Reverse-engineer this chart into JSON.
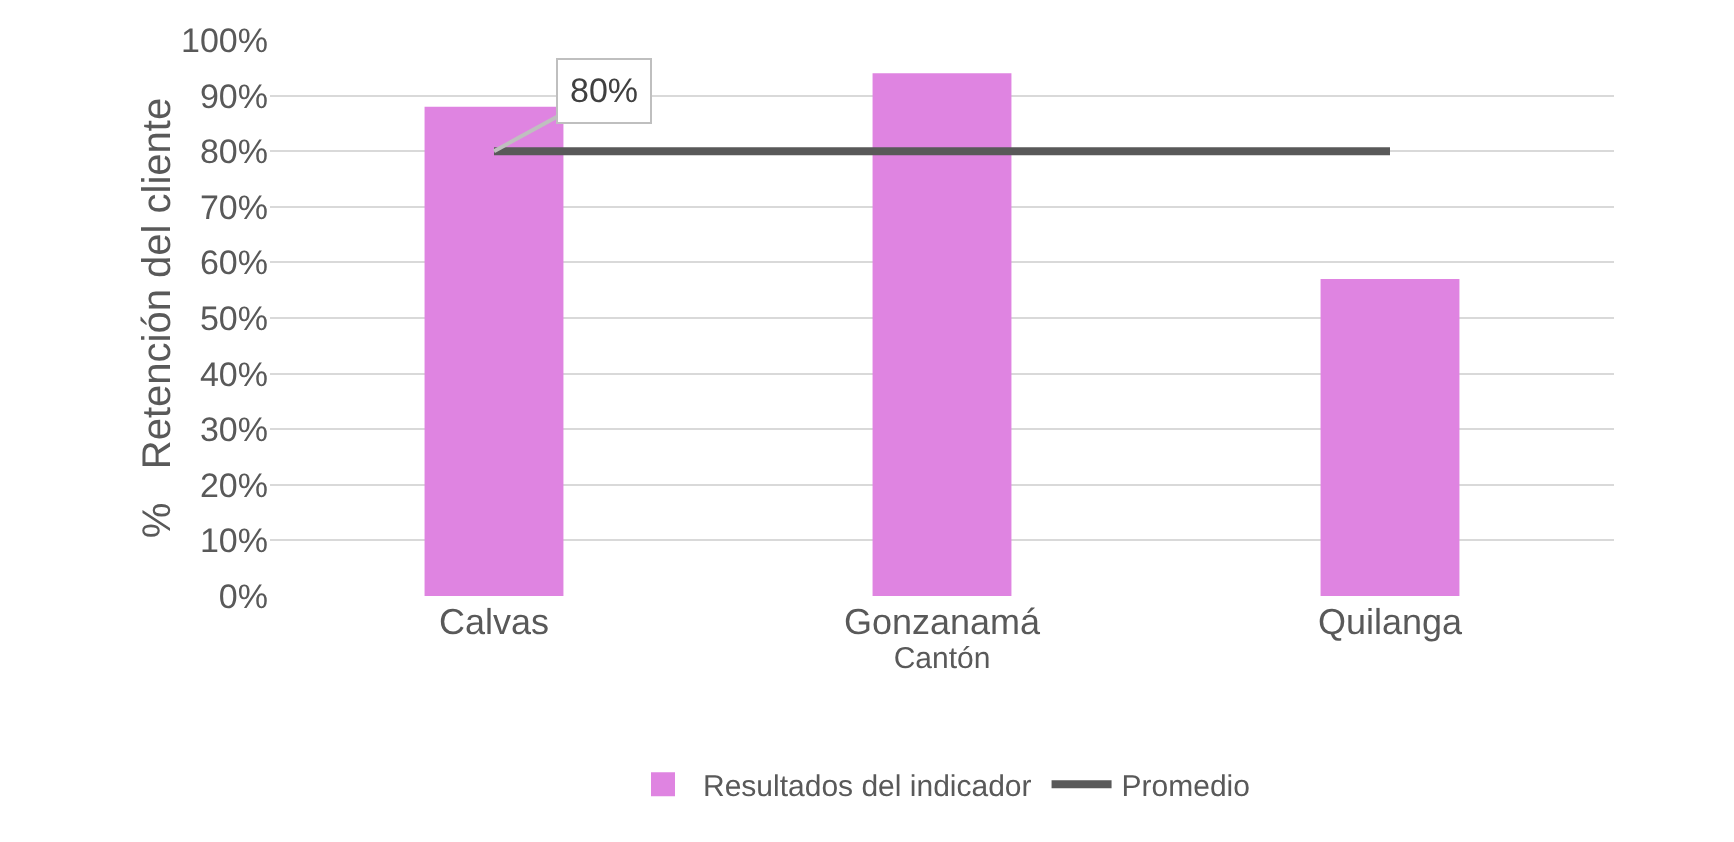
{
  "chart_data": {
    "type": "bar",
    "xlabel": "Cantón",
    "ylabel": "%   Retención del cliente",
    "categories": [
      "Calvas",
      "Gonzanamá",
      "Quilanga"
    ],
    "series": [
      {
        "name": "Resultados del indicador",
        "color": "#df84e1",
        "values": [
          88,
          94,
          57
        ]
      },
      {
        "name": "Promedio",
        "type": "line",
        "color": "#595959",
        "values": [
          80,
          80,
          80
        ]
      }
    ],
    "ylim": [
      0,
      100
    ],
    "yticks": [
      {
        "value": 0,
        "label": "0%"
      },
      {
        "value": 10,
        "label": "10%"
      },
      {
        "value": 20,
        "label": "20%"
      },
      {
        "value": 30,
        "label": "30%"
      },
      {
        "value": 40,
        "label": "40%"
      },
      {
        "value": 50,
        "label": "50%"
      },
      {
        "value": 60,
        "label": "60%"
      },
      {
        "value": 70,
        "label": "70%"
      },
      {
        "value": 80,
        "label": "80%"
      },
      {
        "value": 90,
        "label": "90%"
      },
      {
        "value": 100,
        "label": "100%"
      }
    ],
    "annotations": [
      {
        "text": "80%",
        "x": "Calvas",
        "y": 80
      }
    ],
    "grid": "y",
    "legend": "bottom",
    "marker": "none"
  }
}
